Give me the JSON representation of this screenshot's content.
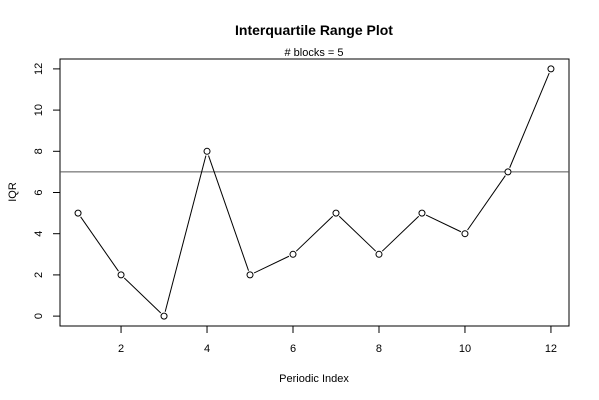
{
  "chart_data": {
    "type": "line",
    "title": "Interquartile Range Plot",
    "subtitle": "# blocks =  5",
    "xlabel": "Periodic Index",
    "ylabel": "IQR",
    "x": [
      1,
      2,
      3,
      4,
      5,
      6,
      7,
      8,
      9,
      10,
      11,
      12
    ],
    "y": [
      5,
      2,
      0,
      8,
      2,
      3,
      5,
      3,
      5,
      4,
      7,
      12
    ],
    "reference_line_y": 7,
    "xlim": [
      0.58,
      12.42
    ],
    "ylim": [
      -0.48,
      12.48
    ],
    "x_ticks": [
      2,
      4,
      6,
      8,
      10,
      12
    ],
    "y_ticks": [
      0,
      2,
      4,
      6,
      8,
      10,
      12
    ],
    "marker": "open-circle",
    "grid": false,
    "colors": {
      "line": "#000000",
      "marker_fill": "#ffffff",
      "reference_line": "#555555"
    }
  }
}
